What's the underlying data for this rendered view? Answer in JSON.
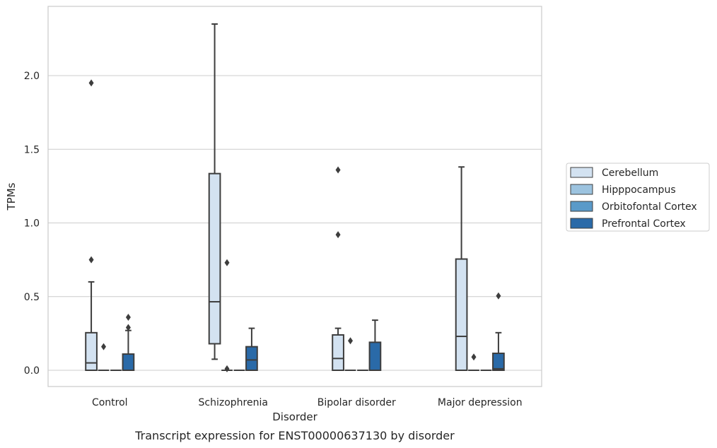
{
  "chart_data": {
    "type": "box",
    "caption": "Transcript expression for ENST00000637130 by disorder",
    "xlabel": "Disorder",
    "ylabel": "TPMs",
    "ylim": [
      -0.11,
      2.47
    ],
    "yticks": [
      "0.0",
      "0.5",
      "1.0",
      "1.5",
      "2.0"
    ],
    "categories": [
      "Control",
      "Schizophrenia",
      "Bipolar disorder",
      "Major depression"
    ],
    "grid": "horizontal",
    "legend_position": "right",
    "series": [
      {
        "name": "Cerebellum",
        "color": "#d3e2f1",
        "boxes": [
          {
            "q1": 0.0,
            "median": 0.05,
            "q3": 0.255,
            "whislo": 0.0,
            "whishi": 0.6,
            "fliers": [
              0.75,
              1.95
            ]
          },
          {
            "q1": 0.18,
            "median": 0.465,
            "q3": 1.335,
            "whislo": 0.075,
            "whishi": 2.35,
            "fliers": []
          },
          {
            "q1": 0.0,
            "median": 0.08,
            "q3": 0.24,
            "whislo": 0.0,
            "whishi": 0.285,
            "fliers": [
              0.92,
              1.36
            ]
          },
          {
            "q1": 0.0,
            "median": 0.23,
            "q3": 0.755,
            "whislo": 0.0,
            "whishi": 1.38,
            "fliers": []
          }
        ]
      },
      {
        "name": "Hipppocampus",
        "color": "#9cc3df",
        "boxes": [
          {
            "q1": 0.0,
            "median": 0.0,
            "q3": 0.0,
            "whislo": 0.0,
            "whishi": 0.0,
            "fliers": [
              0.16
            ]
          },
          {
            "q1": 0.0,
            "median": 0.0,
            "q3": 0.0,
            "whislo": 0.0,
            "whishi": 0.0,
            "fliers": [
              0.01,
              0.73
            ]
          },
          {
            "q1": 0.0,
            "median": 0.0,
            "q3": 0.0,
            "whislo": 0.0,
            "whishi": 0.0,
            "fliers": [
              0.2
            ]
          },
          {
            "q1": 0.0,
            "median": 0.0,
            "q3": 0.0,
            "whislo": 0.0,
            "whishi": 0.0,
            "fliers": [
              0.09
            ]
          }
        ]
      },
      {
        "name": "Orbitofontal Cortex",
        "color": "#5a9ac9",
        "boxes": [
          {
            "q1": 0.0,
            "median": 0.0,
            "q3": 0.0,
            "whislo": 0.0,
            "whishi": 0.0,
            "fliers": []
          },
          {
            "q1": 0.0,
            "median": 0.0,
            "q3": 0.0,
            "whislo": 0.0,
            "whishi": 0.0,
            "fliers": []
          },
          {
            "q1": 0.0,
            "median": 0.0,
            "q3": 0.0,
            "whislo": 0.0,
            "whishi": 0.0,
            "fliers": []
          },
          {
            "q1": 0.0,
            "median": 0.0,
            "q3": 0.0,
            "whislo": 0.0,
            "whishi": 0.0,
            "fliers": []
          }
        ]
      },
      {
        "name": "Prefrontal Cortex",
        "color": "#2a6aa8",
        "boxes": [
          {
            "q1": 0.0,
            "median": 0.0,
            "q3": 0.11,
            "whislo": 0.0,
            "whishi": 0.27,
            "fliers": [
              0.29,
              0.36
            ]
          },
          {
            "q1": 0.0,
            "median": 0.07,
            "q3": 0.16,
            "whislo": 0.0,
            "whishi": 0.285,
            "fliers": []
          },
          {
            "q1": 0.0,
            "median": 0.0,
            "q3": 0.19,
            "whislo": 0.0,
            "whishi": 0.34,
            "fliers": []
          },
          {
            "q1": 0.0,
            "median": 0.01,
            "q3": 0.115,
            "whislo": 0.0,
            "whishi": 0.255,
            "fliers": [
              0.505
            ]
          }
        ]
      }
    ]
  }
}
